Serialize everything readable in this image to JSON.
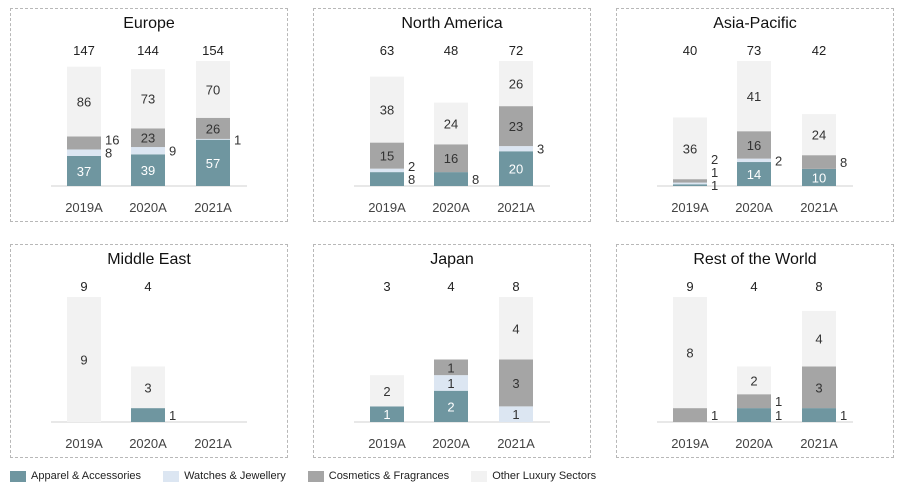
{
  "chart_data": {
    "type": "bar",
    "stacked": true,
    "categories": [
      "2019A",
      "2020A",
      "2021A"
    ],
    "series_names": [
      "Apparel & Accessories",
      "Watches & Jewellery",
      "Cosmetics & Fragrances",
      "Other Luxury Sectors"
    ],
    "colors": [
      "#6f96a0",
      "#dce6f2",
      "#a5a5a5",
      "#f2f2f2"
    ],
    "legend_position": "bottom-left",
    "panels": [
      {
        "title": "Europe",
        "totals": [
          "147",
          "144",
          "154"
        ],
        "values": [
          [
            37,
            8,
            16,
            86
          ],
          [
            39,
            9,
            23,
            73
          ],
          [
            57,
            1,
            26,
            70
          ]
        ]
      },
      {
        "title": "North America",
        "totals": [
          "63",
          "48",
          "72"
        ],
        "values": [
          [
            8,
            2,
            15,
            38
          ],
          [
            8,
            0,
            16,
            24
          ],
          [
            20,
            3,
            23,
            26
          ]
        ]
      },
      {
        "title": "Asia-Pacific",
        "totals": [
          "40",
          "73",
          "42"
        ],
        "values": [
          [
            1,
            1,
            2,
            36
          ],
          [
            14,
            2,
            16,
            41
          ],
          [
            10,
            0,
            8,
            24
          ]
        ]
      },
      {
        "title": "Middle East",
        "totals": [
          "9",
          "4",
          ""
        ],
        "values": [
          [
            0,
            0,
            0,
            9
          ],
          [
            1,
            0,
            0,
            3
          ],
          [
            0,
            0,
            0,
            0
          ]
        ]
      },
      {
        "title": "Japan",
        "totals": [
          "3",
          "4",
          "8"
        ],
        "values": [
          [
            1,
            0,
            0,
            2
          ],
          [
            2,
            1,
            1,
            0
          ],
          [
            0,
            1,
            3,
            4
          ]
        ]
      },
      {
        "title": "Rest of the World",
        "totals": [
          "9",
          "4",
          "8"
        ],
        "values": [
          [
            0,
            0,
            1,
            8
          ],
          [
            1,
            0,
            1,
            2
          ],
          [
            1,
            0,
            3,
            4
          ]
        ]
      }
    ]
  }
}
